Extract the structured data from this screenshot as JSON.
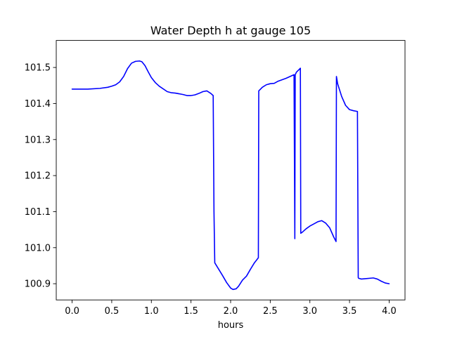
{
  "chart_data": {
    "type": "line",
    "title": "Water Depth h at gauge 105",
    "xlabel": "hours",
    "ylabel": "",
    "xlim": [
      -0.2,
      4.2
    ],
    "ylim": [
      100.855,
      101.575
    ],
    "x_ticks": [
      0.0,
      0.5,
      1.0,
      1.5,
      2.0,
      2.5,
      3.0,
      3.5,
      4.0
    ],
    "x_tick_labels": [
      "0.0",
      "0.5",
      "1.0",
      "1.5",
      "2.0",
      "2.5",
      "3.0",
      "3.5",
      "4.0"
    ],
    "y_ticks": [
      100.9,
      101.0,
      101.1,
      101.2,
      101.3,
      101.4,
      101.5
    ],
    "y_tick_labels": [
      "100.9",
      "101.0",
      "101.1",
      "101.2",
      "101.3",
      "101.4",
      "101.5"
    ],
    "grid": false,
    "line_color": "#0000ff",
    "series": [
      {
        "x": [
          0.0,
          0.2,
          0.35,
          0.45,
          0.5,
          0.55,
          0.6,
          0.65,
          0.7,
          0.75,
          0.8,
          0.85,
          0.88,
          0.92,
          0.96,
          1.0,
          1.05,
          1.1,
          1.2,
          1.25,
          1.3,
          1.4,
          1.45,
          1.5,
          1.55,
          1.6,
          1.65,
          1.7,
          1.75,
          1.78,
          1.79,
          1.8,
          1.85,
          1.9,
          1.95,
          2.0,
          2.03,
          2.07,
          2.1,
          2.15,
          2.2,
          2.25,
          2.3,
          2.35,
          2.355,
          2.4,
          2.45,
          2.5,
          2.55,
          2.6,
          2.7,
          2.8,
          2.81,
          2.815,
          2.82,
          2.83,
          2.88,
          2.885,
          2.9,
          2.95,
          3.0,
          3.05,
          3.1,
          3.15,
          3.2,
          3.25,
          3.3,
          3.33,
          3.335,
          3.35,
          3.4,
          3.45,
          3.5,
          3.55,
          3.6,
          3.61,
          3.615,
          3.65,
          3.7,
          3.8,
          3.85,
          3.9,
          3.95,
          4.0
        ],
        "y": [
          101.44,
          101.44,
          101.442,
          101.445,
          101.448,
          101.452,
          101.46,
          101.475,
          101.497,
          101.512,
          101.517,
          101.518,
          101.516,
          101.505,
          101.488,
          101.472,
          101.458,
          101.448,
          101.433,
          101.43,
          101.429,
          101.425,
          101.422,
          101.422,
          101.424,
          101.428,
          101.433,
          101.435,
          101.428,
          101.422,
          101.1,
          100.958,
          100.94,
          100.922,
          100.903,
          100.888,
          100.884,
          100.886,
          100.893,
          100.91,
          100.921,
          100.94,
          100.958,
          100.972,
          101.435,
          101.445,
          101.452,
          101.455,
          101.456,
          101.462,
          101.47,
          101.48,
          101.025,
          101.48,
          101.482,
          101.487,
          101.498,
          101.04,
          101.042,
          101.052,
          101.06,
          101.066,
          101.072,
          101.075,
          101.068,
          101.055,
          101.03,
          101.017,
          101.475,
          101.455,
          101.42,
          101.395,
          101.383,
          101.38,
          101.378,
          100.917,
          100.915,
          100.913,
          100.914,
          100.916,
          100.913,
          100.907,
          100.902,
          100.9
        ]
      }
    ]
  }
}
